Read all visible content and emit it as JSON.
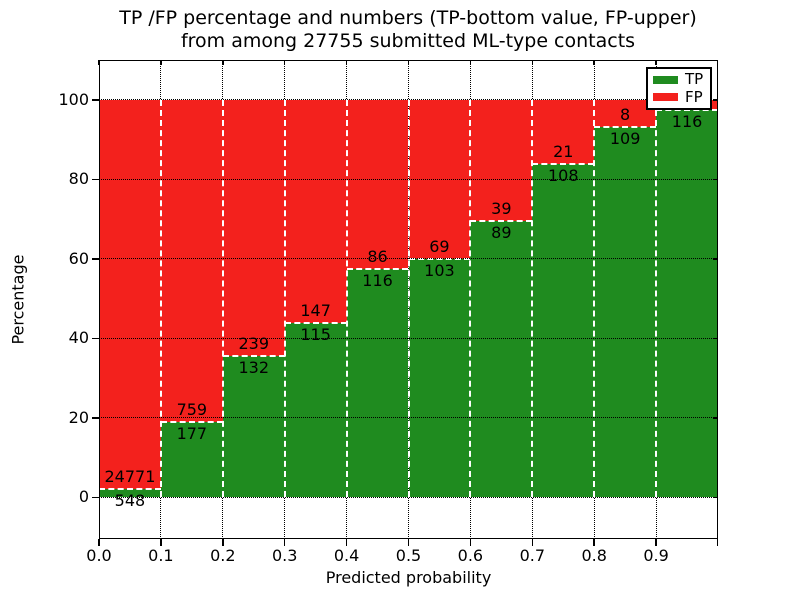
{
  "title_line1": "TP /FP percentage and numbers (TP-bottom value, FP-upper)",
  "title_line2": "from among 27755 submitted ML-type contacts",
  "chart_data": {
    "type": "bar",
    "stacked": true,
    "normalized_to_percent": true,
    "title": "TP /FP percentage and numbers (TP-bottom value, FP-upper) from among 27755 submitted ML-type contacts",
    "total_contacts": 27755,
    "xlabel": "Predicted probability",
    "ylabel": "Percentage",
    "xlim": [
      0.0,
      1.0
    ],
    "ylim": [
      -10.5,
      110
    ],
    "xticks": [
      "0.0",
      "0.1",
      "0.2",
      "0.3",
      "0.4",
      "0.5",
      "0.6",
      "0.7",
      "0.8",
      "0.9"
    ],
    "yticks": [
      "0",
      "20",
      "40",
      "60",
      "80",
      "100"
    ],
    "ytick_values": [
      0,
      20,
      40,
      60,
      80,
      100
    ],
    "grid": true,
    "colors": {
      "tp": "#1f8b1f",
      "fp": "#f3211d"
    },
    "legend": {
      "position": "upper right",
      "entries": [
        {
          "label": "TP",
          "color": "#1f8b1f"
        },
        {
          "label": "FP",
          "color": "#f3211d"
        }
      ]
    },
    "bins": [
      {
        "x0": 0.0,
        "x1": 0.1,
        "tp": 548,
        "fp": 24771,
        "tp_label": "548",
        "fp_label": "24771"
      },
      {
        "x0": 0.1,
        "x1": 0.2,
        "tp": 177,
        "fp": 759,
        "tp_label": "177",
        "fp_label": "759"
      },
      {
        "x0": 0.2,
        "x1": 0.3,
        "tp": 132,
        "fp": 239,
        "tp_label": "132",
        "fp_label": "239"
      },
      {
        "x0": 0.3,
        "x1": 0.4,
        "tp": 115,
        "fp": 147,
        "tp_label": "115",
        "fp_label": "147"
      },
      {
        "x0": 0.4,
        "x1": 0.5,
        "tp": 116,
        "fp": 86,
        "tp_label": "116",
        "fp_label": "86"
      },
      {
        "x0": 0.5,
        "x1": 0.6,
        "tp": 103,
        "fp": 69,
        "tp_label": "103",
        "fp_label": "69"
      },
      {
        "x0": 0.6,
        "x1": 0.7,
        "tp": 89,
        "fp": 39,
        "tp_label": "89",
        "fp_label": "39"
      },
      {
        "x0": 0.7,
        "x1": 0.8,
        "tp": 108,
        "fp": 21,
        "tp_label": "108",
        "fp_label": "21"
      },
      {
        "x0": 0.8,
        "x1": 0.9,
        "tp": 109,
        "fp": 8,
        "tp_label": "109",
        "fp_label": "8"
      },
      {
        "x0": 0.9,
        "x1": 1.0,
        "tp": 116,
        "fp": null,
        "tp_label": "116",
        "fp_label": "",
        "tp_pct": 97.3
      }
    ]
  }
}
